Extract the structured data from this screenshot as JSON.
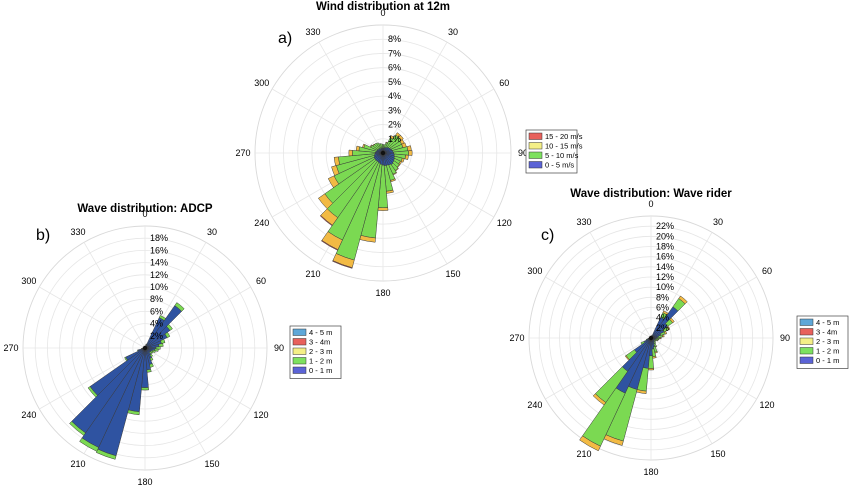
{
  "chart_data": [
    {
      "type": "polar-bar",
      "panel_label": "a)",
      "title": "Wind distribution at 12m",
      "angle_labels": [
        "0",
        "30",
        "60",
        "90",
        "120",
        "150",
        "180",
        "210",
        "240",
        "270",
        "300",
        "330"
      ],
      "radial_ticks": [
        1,
        2,
        3,
        4,
        5,
        6,
        7,
        8
      ],
      "radial_tick_labels": [
        "1%",
        "2%",
        "3%",
        "4%",
        "5%",
        "6%",
        "7%",
        "8%"
      ],
      "rmax": 9,
      "legend_placement": "right",
      "legend": [
        {
          "label": "15 - 20 m/s",
          "color": "#e8615c"
        },
        {
          "label": "10 - 15 m/s",
          "color": "#f4ef87"
        },
        {
          "label": "5 - 10 m/s",
          "color": "#7de15f"
        },
        {
          "label": "0 - 5 m/s",
          "color": "#5b63d6"
        }
      ],
      "series": [
        {
          "name": "0 - 5 m/s",
          "color": "#2f53a1",
          "values": [
            0.35,
            0.35,
            0.4,
            0.45,
            0.5,
            0.55,
            0.6,
            0.65,
            0.7,
            0.75,
            0.8,
            0.85,
            0.9,
            0.95,
            1.0,
            0.95,
            0.9,
            0.9,
            0.85,
            0.8,
            0.75,
            0.7,
            0.7,
            0.7,
            0.7,
            0.65,
            0.6,
            0.55,
            0.5,
            0.45,
            0.45,
            0.4,
            0.4,
            0.35,
            0.35,
            0.35
          ]
        },
        {
          "name": "5 - 10 m/s",
          "color": "#7bd952",
          "values": [
            0.25,
            0.25,
            0.35,
            0.75,
            1.05,
            1.0,
            0.85,
            0.8,
            1.05,
            1.05,
            0.8,
            0.55,
            0.45,
            0.45,
            0.5,
            0.7,
            1.1,
            1.8,
            3.0,
            5.2,
            7.05,
            6.05,
            4.85,
            4.3,
            3.1,
            2.75,
            2.55,
            1.6,
            1.2,
            0.95,
            0.5,
            0.45,
            0.45,
            0.45,
            0.35,
            0.3
          ]
        },
        {
          "name": "10 - 15 m/s",
          "color": "#f2ba44",
          "values": [
            0,
            0,
            0.05,
            0.15,
            0.2,
            0.2,
            0.2,
            0.25,
            0.25,
            0.25,
            0.2,
            0.15,
            0.1,
            0.05,
            0.05,
            0.05,
            0.1,
            0.15,
            0.2,
            0.3,
            0.55,
            0.75,
            0.65,
            0.55,
            0.45,
            0.35,
            0.3,
            0.25,
            0.2,
            0.1,
            0.05,
            0.05,
            0,
            0,
            0,
            0
          ]
        },
        {
          "name": "15 - 20 m/s",
          "color": "#e8615c",
          "values": [
            0,
            0,
            0,
            0,
            0,
            0,
            0,
            0,
            0,
            0,
            0,
            0,
            0,
            0,
            0,
            0,
            0,
            0,
            0,
            0,
            0.05,
            0.05,
            0.05,
            0,
            0,
            0,
            0,
            0,
            0,
            0,
            0,
            0,
            0,
            0,
            0,
            0
          ]
        }
      ]
    },
    {
      "type": "polar-bar",
      "panel_label": "b)",
      "title": "Wave distribution: ADCP",
      "angle_labels": [
        "0",
        "30",
        "60",
        "90",
        "120",
        "150",
        "180",
        "210",
        "240",
        "270",
        "300",
        "330"
      ],
      "radial_ticks": [
        2,
        4,
        6,
        8,
        10,
        12,
        14,
        16,
        18
      ],
      "radial_tick_labels": [
        "2%",
        "4%",
        "6%",
        "8%",
        "10%",
        "12%",
        "14%",
        "16%",
        "18%"
      ],
      "rmax": 20,
      "legend_placement": "right",
      "legend": [
        {
          "label": "4 - 5 m",
          "color": "#5ea7d8"
        },
        {
          "label": "3 - 4m",
          "color": "#e8615c"
        },
        {
          "label": "2 - 3 m",
          "color": "#f4ef87"
        },
        {
          "label": "1 - 2 m",
          "color": "#7de15f"
        },
        {
          "label": "0 - 1 m",
          "color": "#5b63d6"
        }
      ],
      "series": [
        {
          "name": "0 - 1 m",
          "color": "#2f53a1",
          "values": [
            0.3,
            0.3,
            0.6,
            5.5,
            8.5,
            5.0,
            4.0,
            2.8,
            2.3,
            1.8,
            1.6,
            1.3,
            1.1,
            1.0,
            1.4,
            1.9,
            2.8,
            3.6,
            6.5,
            10.5,
            18.3,
            18.0,
            17.0,
            11.0,
            3.5,
            1.2,
            0.5,
            0.4,
            0.3,
            0.3,
            0.3,
            0.3,
            0.3,
            0.3,
            0.3,
            0.3
          ]
        },
        {
          "name": "1 - 2 m",
          "color": "#7bd952",
          "values": [
            0,
            0,
            0.1,
            0.4,
            0.6,
            0.5,
            0.5,
            0.6,
            0.7,
            0.7,
            0.6,
            0.5,
            0.4,
            0.4,
            0.4,
            0.4,
            0.5,
            0.4,
            0.4,
            0.5,
            0.6,
            0.7,
            0.5,
            0.4,
            0.2,
            0.1,
            0.1,
            0,
            0,
            0,
            0,
            0,
            0,
            0,
            0,
            0
          ]
        },
        {
          "name": "2 - 3 m",
          "color": "#f2ba44",
          "values": [
            0,
            0,
            0,
            0,
            0,
            0,
            0,
            0,
            0,
            0,
            0,
            0,
            0,
            0,
            0,
            0,
            0,
            0,
            0,
            0,
            0,
            0,
            0,
            0,
            0,
            0,
            0,
            0,
            0,
            0,
            0,
            0,
            0,
            0,
            0,
            0
          ]
        },
        {
          "name": "3 - 4m",
          "color": "#e8615c",
          "values": [
            0,
            0,
            0,
            0,
            0,
            0,
            0,
            0,
            0,
            0,
            0,
            0,
            0,
            0,
            0,
            0,
            0,
            0,
            0,
            0,
            0,
            0,
            0,
            0,
            0,
            0,
            0,
            0,
            0,
            0,
            0,
            0,
            0,
            0,
            0,
            0
          ]
        },
        {
          "name": "4 - 5 m",
          "color": "#5ea7d8",
          "values": [
            0,
            0,
            0,
            0,
            0,
            0,
            0,
            0,
            0,
            0,
            0,
            0,
            0,
            0,
            0,
            0,
            0,
            0,
            0,
            0,
            0,
            0,
            0,
            0,
            0,
            0,
            0,
            0,
            0,
            0,
            0,
            0,
            0,
            0,
            0,
            0
          ]
        }
      ]
    },
    {
      "type": "polar-bar",
      "panel_label": "c)",
      "title": "Wave distribution: Wave rider",
      "angle_labels": [
        "0",
        "30",
        "60",
        "90",
        "120",
        "150",
        "180",
        "210",
        "240",
        "270",
        "300",
        "330"
      ],
      "radial_ticks": [
        2,
        4,
        6,
        8,
        10,
        12,
        14,
        16,
        18,
        20,
        22
      ],
      "radial_tick_labels": [
        "2%",
        "4%",
        "6%",
        "8%",
        "10%",
        "12%",
        "14%",
        "16%",
        "18%",
        "20%",
        "22%"
      ],
      "rmax": 24,
      "legend_placement": "right",
      "legend": [
        {
          "label": "4 - 5 m",
          "color": "#5ea7d8"
        },
        {
          "label": "3 - 4m",
          "color": "#e8615c"
        },
        {
          "label": "2 - 3 m",
          "color": "#f4ef87"
        },
        {
          "label": "1 - 2 m",
          "color": "#7de15f"
        },
        {
          "label": "0 - 1 m",
          "color": "#5b63d6"
        }
      ],
      "series": [
        {
          "name": "0 - 1 m",
          "color": "#2f53a1",
          "values": [
            0.3,
            0.3,
            0.5,
            4.5,
            7.5,
            4.0,
            2.8,
            2.0,
            1.5,
            1.2,
            1.0,
            0.9,
            0.8,
            0.8,
            1.0,
            1.3,
            1.8,
            2.2,
            3.5,
            6.0,
            10.5,
            12.0,
            8.0,
            4.0,
            1.5,
            0.8,
            0.5,
            0.4,
            0.3,
            0.3,
            0.3,
            0.3,
            0.3,
            0.3,
            0.3,
            0.3
          ]
        },
        {
          "name": "1 - 2 m",
          "color": "#7bd952",
          "values": [
            0,
            0,
            0.1,
            1.0,
            2.0,
            1.2,
            1.0,
            0.9,
            0.8,
            0.6,
            0.5,
            0.4,
            0.3,
            0.3,
            0.4,
            0.6,
            1.1,
            1.5,
            2.5,
            4.5,
            10.5,
            11.5,
            7.5,
            2.0,
            0.7,
            0.2,
            0.1,
            0,
            0,
            0,
            0,
            0,
            0,
            0,
            0,
            0
          ]
        },
        {
          "name": "2 - 3 m",
          "color": "#f2ba44",
          "values": [
            0,
            0,
            0,
            0.4,
            0.6,
            0.4,
            0.3,
            0.3,
            0.3,
            0.2,
            0.1,
            0.1,
            0,
            0,
            0,
            0.1,
            0.2,
            0.3,
            0.3,
            0.5,
            0.9,
            1.0,
            0.6,
            0.2,
            0,
            0,
            0,
            0,
            0,
            0,
            0,
            0,
            0,
            0,
            0,
            0
          ]
        },
        {
          "name": "3 - 4m",
          "color": "#e8615c",
          "values": [
            0,
            0,
            0,
            0,
            0,
            0,
            0,
            0,
            0,
            0,
            0,
            0,
            0,
            0,
            0,
            0,
            0,
            0,
            0,
            0,
            0,
            0,
            0,
            0,
            0,
            0,
            0,
            0,
            0,
            0,
            0,
            0,
            0,
            0,
            0,
            0
          ]
        },
        {
          "name": "4 - 5 m",
          "color": "#5ea7d8",
          "values": [
            0,
            0,
            0,
            0,
            0,
            0,
            0,
            0,
            0,
            0,
            0,
            0,
            0,
            0,
            0,
            0,
            0,
            0,
            0,
            0,
            0,
            0,
            0,
            0,
            0,
            0,
            0,
            0,
            0,
            0,
            0,
            0,
            0,
            0,
            0,
            0
          ]
        }
      ]
    }
  ]
}
